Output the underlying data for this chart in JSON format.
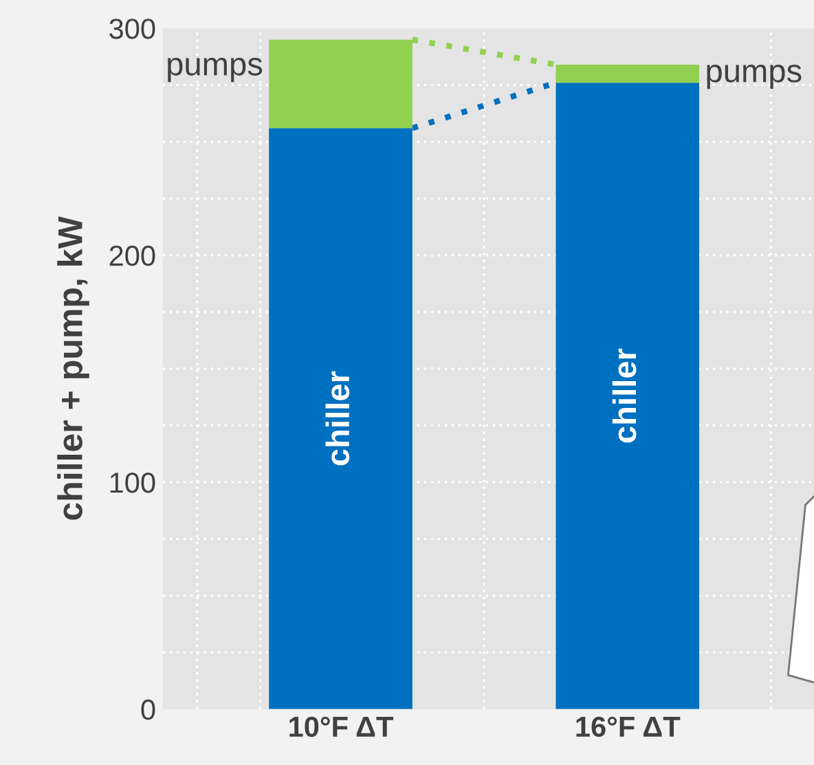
{
  "chart_data": {
    "type": "bar",
    "stacked": true,
    "categories": [
      "10°F ΔT",
      "16°F ΔT"
    ],
    "series": [
      {
        "name": "chiller",
        "color": "#0070c0",
        "values": [
          256,
          276
        ]
      },
      {
        "name": "pumps",
        "color": "#92d050",
        "values": [
          39,
          8
        ]
      }
    ],
    "ylabel": "chiller + pump, kW",
    "ylim": [
      0,
      300
    ],
    "yticks": [
      0,
      100,
      200,
      300
    ],
    "grid": true,
    "legend": false
  }
}
